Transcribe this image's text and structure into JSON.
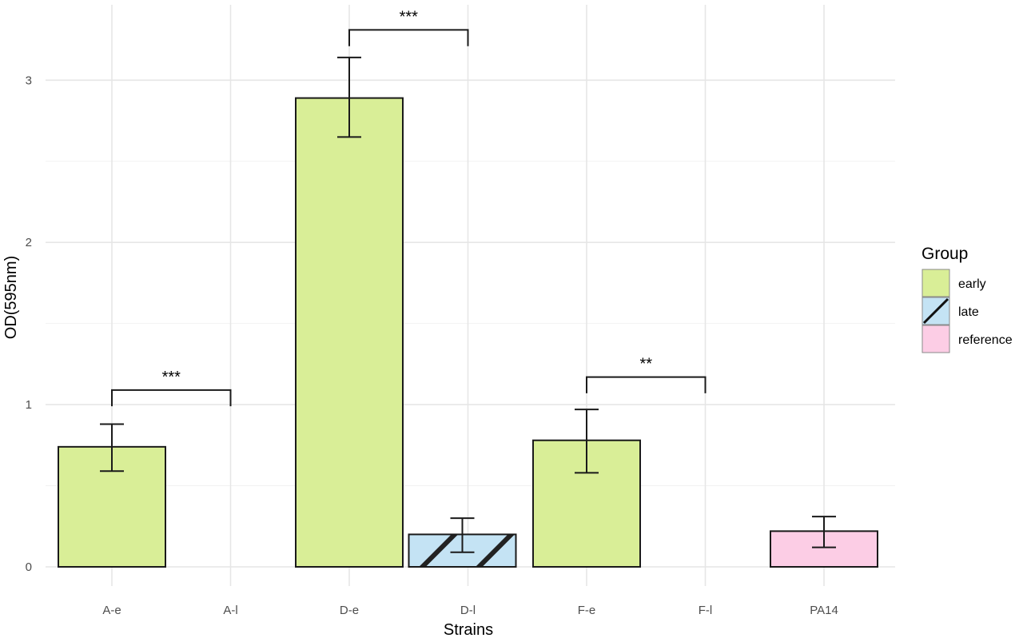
{
  "chart_data": {
    "type": "bar",
    "xlabel": "Strains",
    "ylabel": "OD(595nm)",
    "ylim": [
      0,
      3.3
    ],
    "yticks": [
      "0",
      "1",
      "2",
      "3"
    ],
    "grid": true,
    "legend": {
      "title": "Group",
      "placement": "right",
      "entries": [
        {
          "label": "early",
          "color": "#d9ee97",
          "pattern": "none"
        },
        {
          "label": "late",
          "color": "#c4e3f4",
          "pattern": "diagonal-stripe"
        },
        {
          "label": "reference",
          "color": "#fccde5",
          "pattern": "none"
        }
      ]
    },
    "categories": [
      "A-e",
      "A-l",
      "D-e",
      "D-l",
      "F-e",
      "F-l",
      "PA14"
    ],
    "bars": [
      {
        "category": "D-e",
        "group": "early",
        "value": 2.89,
        "error_low": 2.65,
        "error_high": 3.14
      },
      {
        "category": "D-l",
        "group": "late",
        "value": 0.2,
        "error_low": 0.09,
        "error_high": 0.3
      },
      {
        "category": "A-e",
        "group": "early",
        "value": 0.74,
        "error_low": 0.59,
        "error_high": 0.88
      },
      {
        "category": "F-e",
        "group": "early",
        "value": 0.78,
        "error_low": 0.58,
        "error_high": 0.97
      },
      {
        "category": "PA14",
        "group": "reference",
        "value": 0.22,
        "error_low": 0.12,
        "error_high": 0.31
      }
    ],
    "significance": [
      {
        "from": "A-e",
        "to": "A-l",
        "label": "***",
        "y": 1.09,
        "tip": 0.99
      },
      {
        "from": "D-e",
        "to": "D-l",
        "label": "***",
        "y": 3.31,
        "tip": 3.21
      },
      {
        "from": "F-e",
        "to": "F-l",
        "label": "**",
        "y": 1.17,
        "tip": 1.07
      }
    ]
  }
}
